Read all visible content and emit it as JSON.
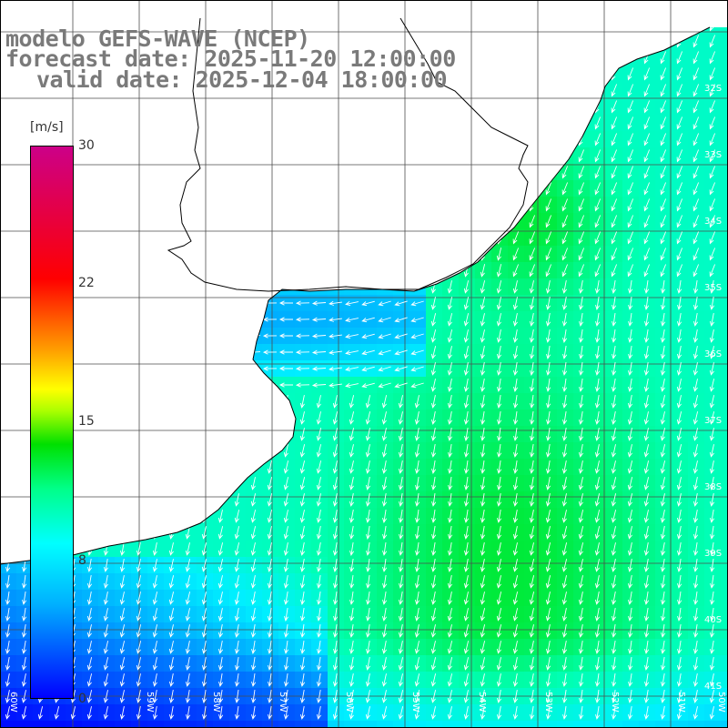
{
  "title": {
    "line1": "modelo GEFS-WAVE (NCEP)",
    "line2": "forecast date: 2025-11-20 12:00:00",
    "line3": "valid date: 2025-12-04 18:00:00"
  },
  "colorbar": {
    "unit": "[m/s]",
    "min": 0,
    "max": 30,
    "ticks": [
      "30",
      "22",
      "15",
      "8",
      "0"
    ]
  },
  "grid": {
    "lat_labels": [
      "32S",
      "33S",
      "34S",
      "35S",
      "36S",
      "37S",
      "38S",
      "39S",
      "40S",
      "41S"
    ],
    "lon_labels": [
      "60W",
      "59W",
      "58W",
      "57W",
      "56W",
      "55W",
      "54W",
      "53W",
      "52W",
      "51W",
      "50W"
    ]
  },
  "colors": {
    "land": "#ffffff",
    "coast": "#000000",
    "grid": "#4d4d4d",
    "arrow": "#ffffff",
    "title": "#7a7a7a"
  },
  "field": {
    "variable": "wind speed",
    "typical_direction": "from north-northeast (arrows pointing south-southwest)"
  }
}
